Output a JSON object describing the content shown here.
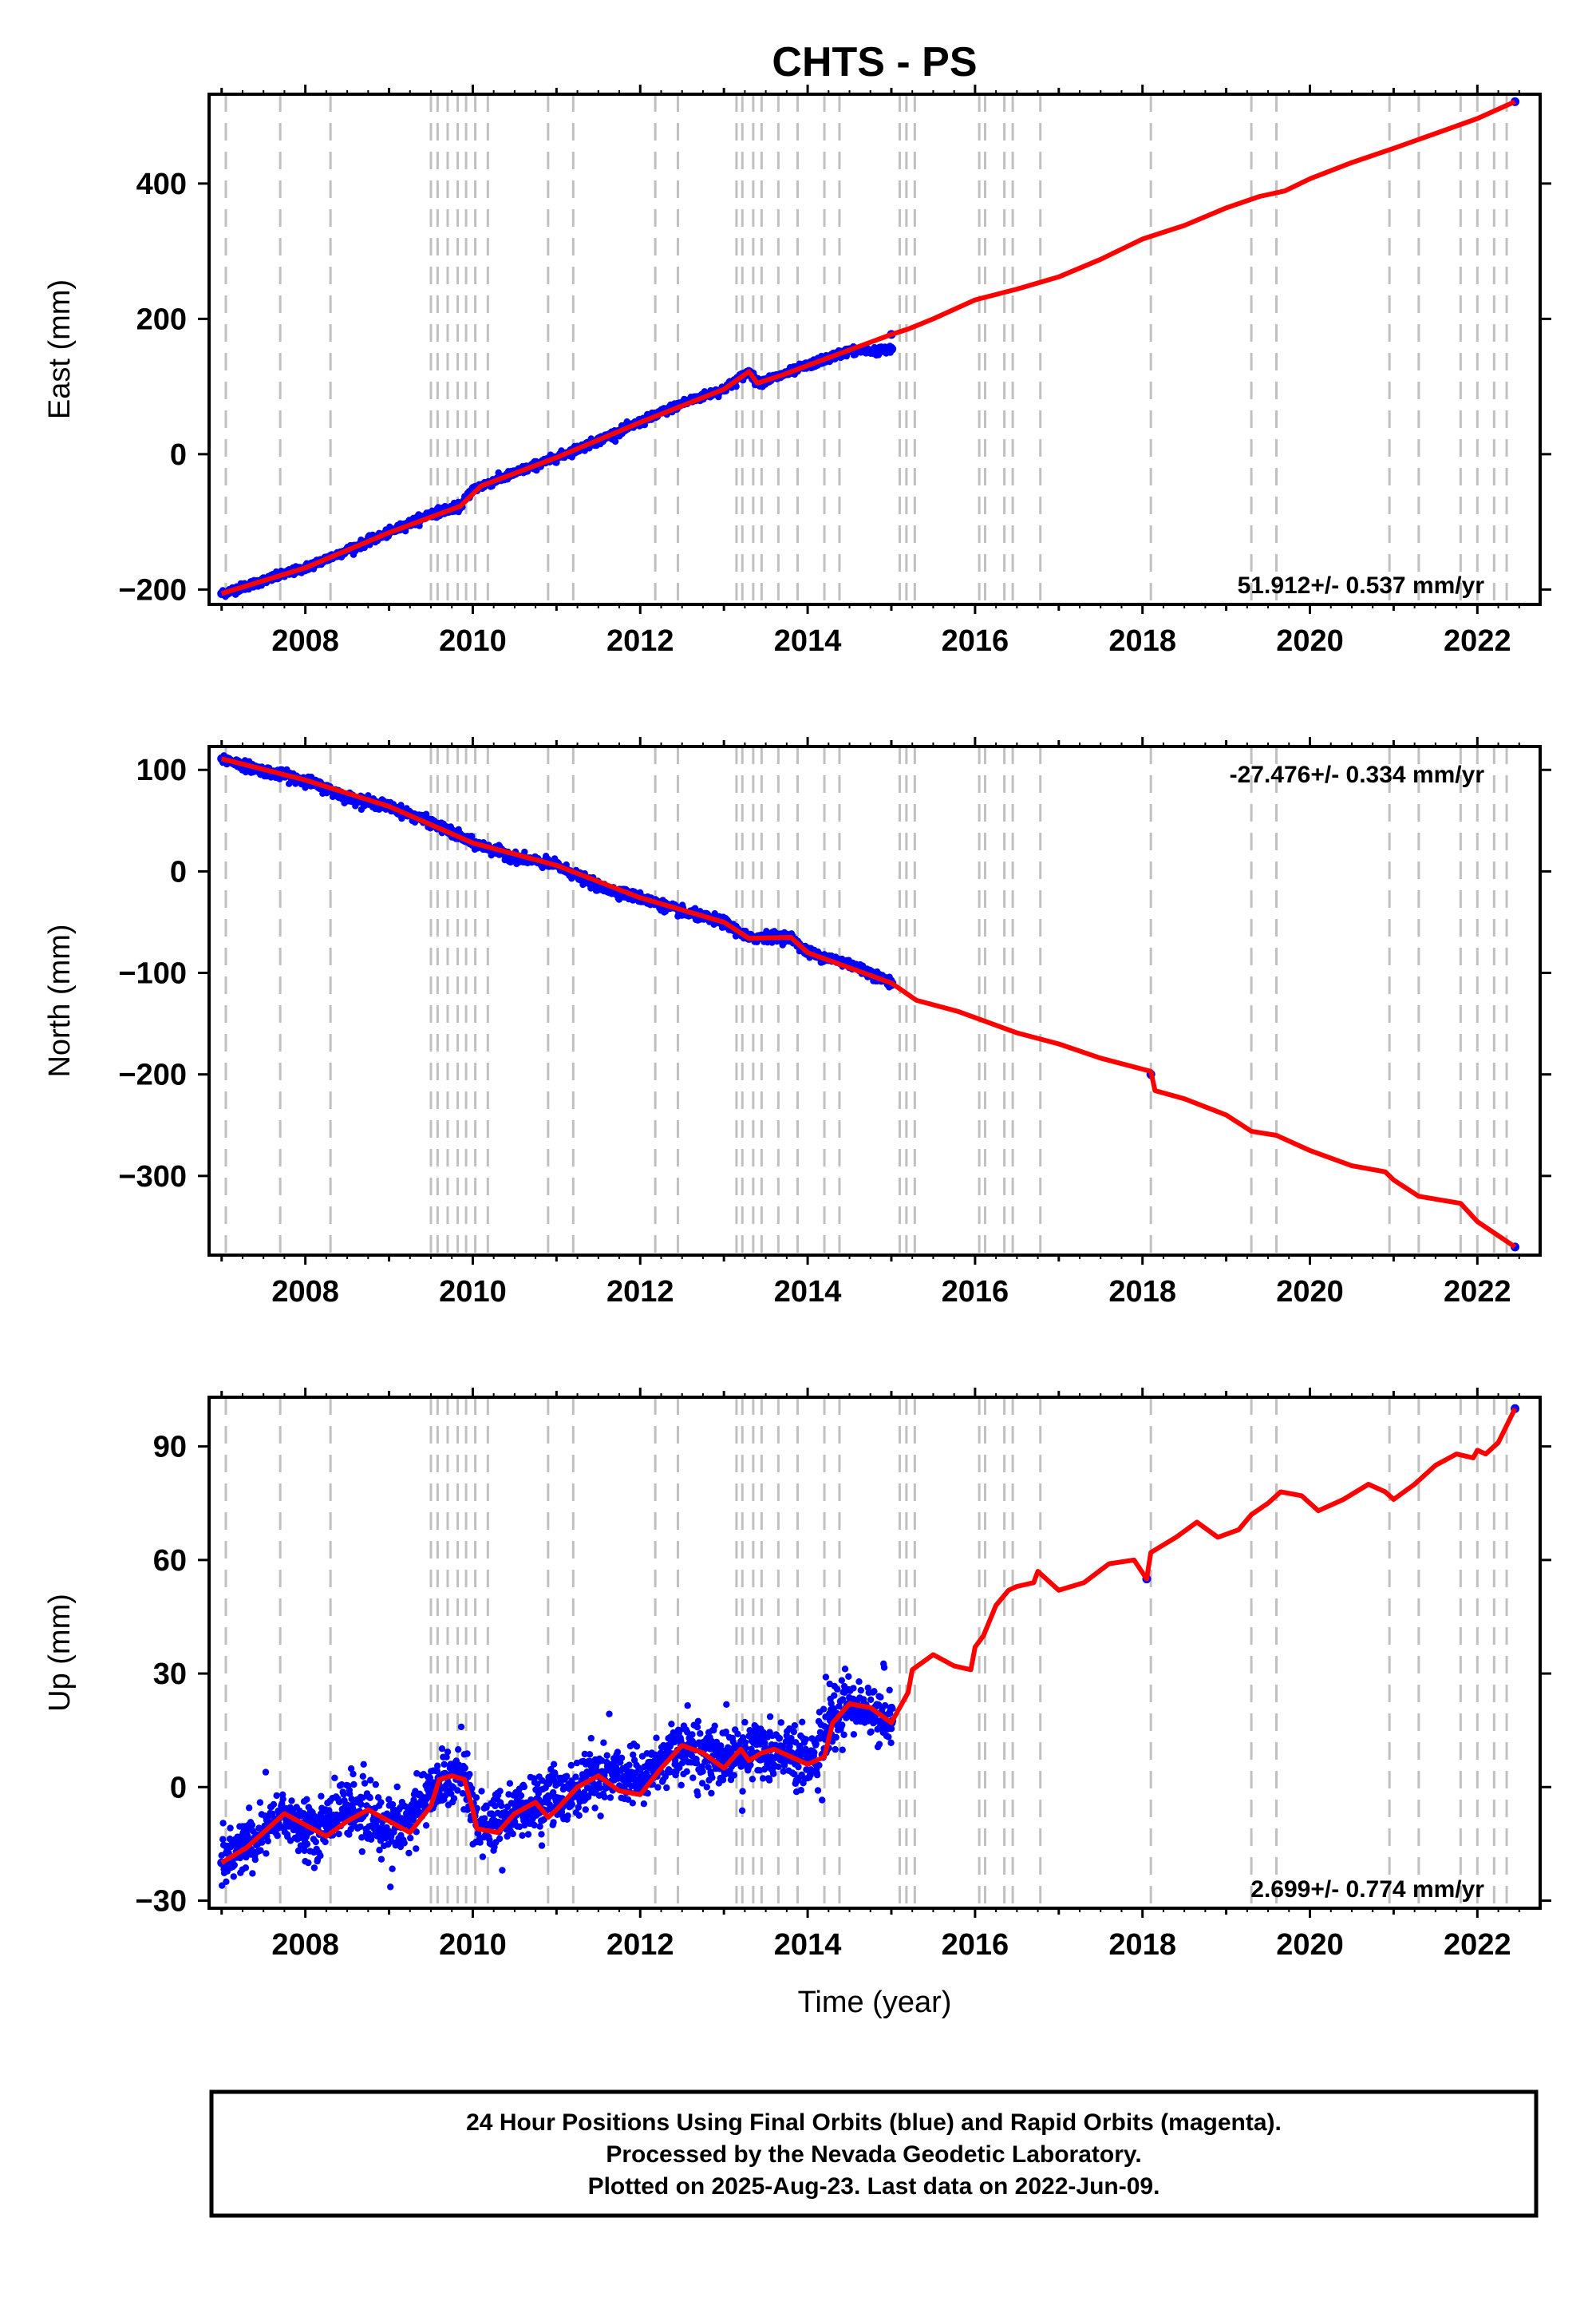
{
  "figure": {
    "title": "CHTS - PS",
    "xlabel": "Time (year)",
    "footer_lines": [
      "24 Hour Positions Using Final Orbits (blue) and Rapid Orbits (magenta).",
      "Processed by the Nevada Geodetic Laboratory.",
      "Plotted on 2025-Aug-23. Last data on 2022-Jun-09."
    ],
    "colors": {
      "final_points": "#0000ff",
      "model_line": "#ff0000",
      "event_lines": "#c0c0c0",
      "frame": "#000000"
    }
  },
  "chart_data": [
    {
      "type": "scatter",
      "component": "East",
      "ylabel": "East (mm)",
      "rate_label": "51.912+/- 0.537 mm/yr",
      "rate_position": "bottom-right",
      "xlim": [
        2006.85,
        2022.75
      ],
      "ylim": [
        -222,
        532
      ],
      "yticks": [
        -200,
        0,
        200,
        400
      ],
      "xticks": [
        2008,
        2010,
        2012,
        2014,
        2016,
        2018,
        2020,
        2022
      ],
      "grid": false,
      "series": [
        {
          "kind": "points",
          "color": "#0000ff",
          "x": [
            2007.0,
            2007.5,
            2008.0,
            2008.5,
            2009.0,
            2009.5,
            2009.85,
            2010.0,
            2010.5,
            2011.0,
            2011.5,
            2012.0,
            2012.5,
            2013.0,
            2013.3,
            2013.4,
            2013.7,
            2014.0,
            2014.5,
            2015.0,
            2022.45
          ],
          "y": [
            -206,
            -187,
            -168,
            -142,
            -116,
            -88,
            -77,
            -52,
            -28,
            -5,
            20,
            47,
            75,
            96,
            122,
            105,
            117,
            131,
            153,
            177,
            521
          ]
        },
        {
          "kind": "line",
          "color": "#ff0000",
          "x": [
            2007.0,
            2008.0,
            2009.0,
            2009.85,
            2010.1,
            2011.0,
            2012.0,
            2013.0,
            2013.3,
            2013.4,
            2013.7,
            2014.0,
            2015.0,
            2015.2,
            2015.5,
            2016.0,
            2016.5,
            2017.0,
            2017.5,
            2018.0,
            2018.5,
            2019.0,
            2019.4,
            2019.7,
            2020.0,
            2020.5,
            2021.0,
            2021.5,
            2022.0,
            2022.45
          ],
          "y": [
            -206,
            -168,
            -116,
            -77,
            -47,
            -5,
            47,
            96,
            122,
            105,
            117,
            131,
            177,
            185,
            200,
            228,
            244,
            262,
            288,
            318,
            338,
            364,
            381,
            389,
            407,
            431,
            452,
            474,
            496,
            521
          ]
        }
      ]
    },
    {
      "type": "scatter",
      "component": "North",
      "ylabel": "North (mm)",
      "rate_label": "-27.476+/- 0.334 mm/yr",
      "rate_position": "top-right",
      "xlim": [
        2006.85,
        2022.75
      ],
      "ylim": [
        -378,
        123
      ],
      "yticks": [
        -300,
        -200,
        -100,
        0,
        100
      ],
      "xticks": [
        2008,
        2010,
        2012,
        2014,
        2016,
        2018,
        2020,
        2022
      ],
      "grid": false,
      "series": [
        {
          "kind": "points",
          "color": "#0000ff",
          "x": [
            2007.0,
            2007.5,
            2008.0,
            2008.5,
            2009.0,
            2009.5,
            2010.0,
            2010.5,
            2011.0,
            2011.5,
            2012.0,
            2012.5,
            2013.0,
            2013.3,
            2013.5,
            2013.8,
            2014.0,
            2014.5,
            2015.0,
            2018.1,
            2022.45
          ],
          "y": [
            111,
            99,
            90,
            73,
            64,
            48,
            28,
            14,
            6,
            -15,
            -26,
            -40,
            -50,
            -66,
            -64,
            -65,
            -80,
            -91,
            -110,
            -200,
            -370
          ]
        },
        {
          "kind": "line",
          "color": "#ff0000",
          "x": [
            2007.0,
            2008.0,
            2009.0,
            2010.0,
            2011.0,
            2012.0,
            2013.0,
            2013.3,
            2013.8,
            2014.0,
            2015.0,
            2015.3,
            2015.8,
            2016.5,
            2017.0,
            2017.5,
            2018.1,
            2018.15,
            2018.5,
            2019.0,
            2019.3,
            2019.6,
            2020.0,
            2020.5,
            2020.9,
            2021.0,
            2021.3,
            2021.8,
            2022.0,
            2022.45
          ],
          "y": [
            111,
            90,
            64,
            28,
            6,
            -26,
            -50,
            -66,
            -65,
            -80,
            -110,
            -127,
            -138,
            -159,
            -170,
            -184,
            -197,
            -216,
            -224,
            -240,
            -256,
            -260,
            -275,
            -290,
            -296,
            -304,
            -320,
            -327,
            -345,
            -370
          ]
        }
      ]
    },
    {
      "type": "scatter",
      "component": "Up",
      "ylabel": "Up (mm)",
      "rate_label": "2.699+/- 0.774 mm/yr",
      "rate_position": "bottom-right",
      "xlim": [
        2006.85,
        2022.75
      ],
      "ylim": [
        -32,
        103
      ],
      "yticks": [
        -30,
        0,
        30,
        60,
        90
      ],
      "xticks": [
        2008,
        2010,
        2012,
        2014,
        2016,
        2018,
        2020,
        2022
      ],
      "grid": false,
      "series": [
        {
          "kind": "points",
          "color": "#0000ff",
          "x": [
            2007.0,
            2007.5,
            2007.75,
            2008.0,
            2008.5,
            2009.0,
            2009.5,
            2009.7,
            2009.9,
            2010.05,
            2010.5,
            2011.0,
            2011.5,
            2012.0,
            2012.5,
            2013.0,
            2013.5,
            2014.0,
            2014.3,
            2014.5,
            2015.0,
            2018.05,
            2022.45
          ],
          "y": [
            -20,
            -12,
            -7,
            -13,
            -5,
            -12,
            -2,
            3,
            3,
            -10,
            -7,
            -3,
            3,
            2,
            11,
            8,
            10,
            7,
            17,
            22,
            17,
            55,
            100
          ]
        },
        {
          "kind": "line",
          "color": "#ff0000",
          "x": [
            2007.0,
            2007.3,
            2007.5,
            2007.75,
            2008.0,
            2008.25,
            2008.5,
            2008.75,
            2009.0,
            2009.25,
            2009.5,
            2009.6,
            2009.75,
            2009.9,
            2010.0,
            2010.05,
            2010.3,
            2010.5,
            2010.75,
            2010.9,
            2011.0,
            2011.25,
            2011.5,
            2011.75,
            2012.0,
            2012.25,
            2012.5,
            2012.75,
            2013.0,
            2013.2,
            2013.3,
            2013.45,
            2013.6,
            2013.8,
            2014.0,
            2014.2,
            2014.3,
            2014.5,
            2014.75,
            2015.0,
            2015.1,
            2015.2,
            2015.25,
            2015.5,
            2015.75,
            2015.95,
            2016.0,
            2016.1,
            2016.25,
            2016.4,
            2016.5,
            2016.7,
            2016.75,
            2017.0,
            2017.3,
            2017.6,
            2017.9,
            2018.05,
            2018.1,
            2018.4,
            2018.65,
            2018.9,
            2019.15,
            2019.3,
            2019.5,
            2019.65,
            2019.9,
            2020.1,
            2020.4,
            2020.7,
            2020.9,
            2021.0,
            2021.25,
            2021.5,
            2021.75,
            2021.95,
            2022.0,
            2022.1,
            2022.25,
            2022.45
          ],
          "y": [
            -20,
            -16,
            -12,
            -7,
            -10,
            -13,
            -9,
            -6,
            -9,
            -12,
            -5,
            2,
            3,
            2,
            -6,
            -11,
            -12,
            -7,
            -4,
            -8,
            -6,
            0,
            3,
            -1,
            -2,
            5,
            11,
            9,
            5,
            10,
            7,
            9,
            10,
            8,
            6,
            8,
            17,
            22,
            21,
            17,
            21,
            25,
            31,
            35,
            32,
            31,
            37,
            40,
            48,
            52,
            53,
            54,
            57,
            52,
            54,
            59,
            60,
            55,
            62,
            66,
            70,
            66,
            68,
            72,
            75,
            78,
            77,
            73,
            76,
            80,
            78,
            76,
            80,
            85,
            88,
            87,
            89,
            88,
            91,
            100
          ]
        }
      ]
    }
  ],
  "events": {
    "x": [
      2007.05,
      2007.7,
      2008.3,
      2009.5,
      2009.58,
      2009.7,
      2009.82,
      2009.92,
      2010.03,
      2010.18,
      2010.9,
      2011.2,
      2012.18,
      2012.45,
      2013.15,
      2013.22,
      2013.35,
      2013.45,
      2013.65,
      2013.88,
      2014.2,
      2014.38,
      2015.1,
      2015.18,
      2015.28,
      2016.05,
      2016.12,
      2016.35,
      2016.45,
      2016.78,
      2018.1,
      2019.3,
      2019.6,
      2020.95,
      2021.3,
      2021.8,
      2022.0,
      2022.2,
      2022.35
    ]
  }
}
